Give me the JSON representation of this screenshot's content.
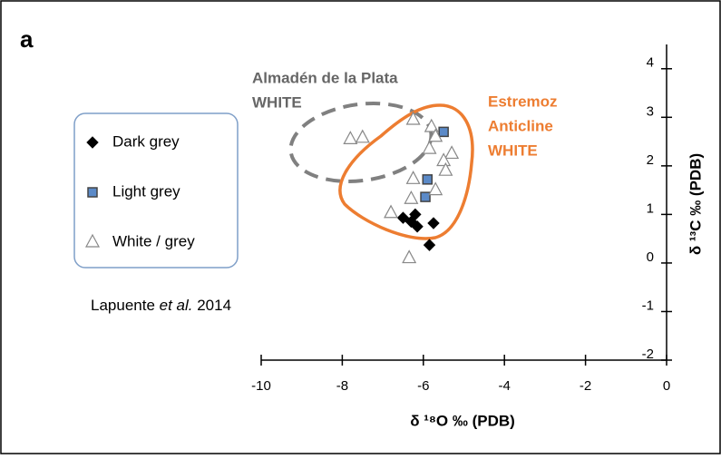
{
  "chart_data": {
    "type": "scatter",
    "panel_label": "a",
    "xlabel": "δ ¹⁸O ‰ (PDB)",
    "ylabel": "δ ¹³C ‰ (PDB)",
    "xlim": [
      -10,
      0
    ],
    "xticks": [
      -10,
      -8,
      -6,
      -4,
      -2,
      0
    ],
    "ylim": [
      -2,
      4.5
    ],
    "yticks": [
      -2,
      -1,
      0,
      1,
      2,
      3,
      4
    ],
    "annotations": [
      "Almadén de la Plata",
      "WHITE",
      "Estremoz",
      "Anticline",
      "WHITE"
    ],
    "citation": [
      "Lapuente ",
      "et al.",
      " 2014"
    ],
    "legend": "upper left",
    "series": [
      {
        "name": "Dark grey",
        "marker": "diamond",
        "color": "#000000",
        "x": [
          -6.5,
          -6.2,
          -6.3,
          -6.15,
          -5.75,
          -5.85
        ],
        "values": [
          0.93,
          1.0,
          0.85,
          0.75,
          0.82,
          0.37
        ]
      },
      {
        "name": "Light grey",
        "marker": "square",
        "color": "#5b8ac8",
        "x": [
          -5.5,
          -5.9,
          -5.95
        ],
        "values": [
          2.7,
          1.72,
          1.36
        ]
      },
      {
        "name": "White / grey",
        "marker": "triangle",
        "color": "#ffffff",
        "x": [
          -6.25,
          -5.8,
          -5.7,
          -5.85,
          -5.3,
          -5.5,
          -5.45,
          -7.8,
          -7.5,
          -6.25,
          -5.7,
          -6.3,
          -6.8,
          -6.35
        ],
        "values": [
          2.95,
          2.8,
          2.6,
          2.35,
          2.25,
          2.1,
          1.9,
          2.55,
          2.58,
          1.73,
          1.5,
          1.32,
          1.03,
          0.1
        ]
      }
    ]
  }
}
